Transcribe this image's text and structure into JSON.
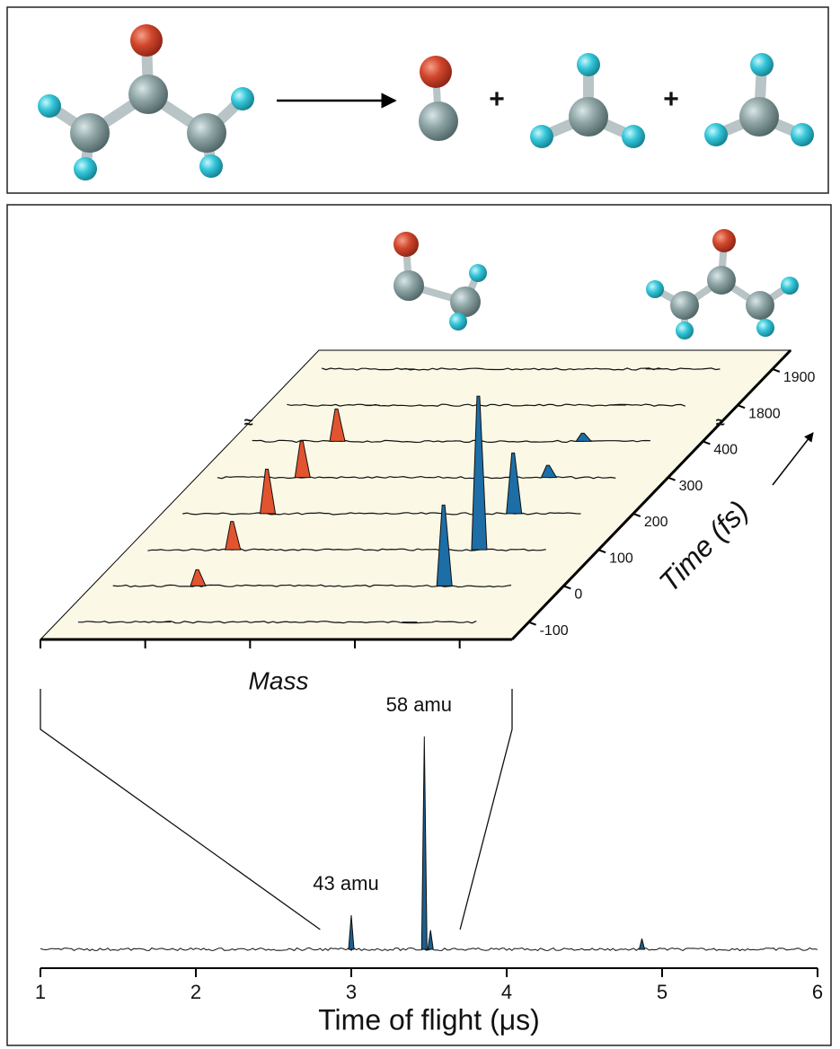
{
  "reaction": {
    "symbols": [
      "+",
      "+"
    ]
  },
  "chart_data": [
    {
      "type": "waterfall",
      "x_label": "Mass",
      "y_label": "Time (fs)",
      "xlim": [
        2.8,
        3.7
      ],
      "xticks": [
        2.8,
        3.0,
        3.2,
        3.4,
        3.6
      ],
      "yticks": [
        -100,
        0,
        100,
        200,
        300,
        400,
        1800,
        1900
      ],
      "series": [
        {
          "color": "#e2532f",
          "position": 3.0,
          "values": [
            0,
            0.2,
            0.35,
            0.55,
            0.45,
            0.4,
            0,
            0
          ]
        },
        {
          "color": "#1d6ea6",
          "position": 3.47,
          "values": [
            0,
            1.0,
            1.9,
            0.75,
            0.15,
            0.1,
            0,
            0
          ]
        }
      ]
    },
    {
      "type": "spectrum",
      "x_label": "Time of flight (μs)",
      "xlim": [
        1,
        6
      ],
      "xticks": [
        1,
        2,
        3,
        4,
        5,
        6
      ],
      "zoom_xlim": [
        2.8,
        3.7
      ],
      "peaks": {
        "x": [
          3.0,
          3.47,
          3.51,
          4.87
        ],
        "values": [
          0.16,
          1,
          0.09,
          0.05
        ]
      },
      "annotations": [
        {
          "text": "43 amu",
          "x": 3.0
        },
        {
          "text": "58 amu",
          "x": 3.47
        }
      ]
    }
  ]
}
